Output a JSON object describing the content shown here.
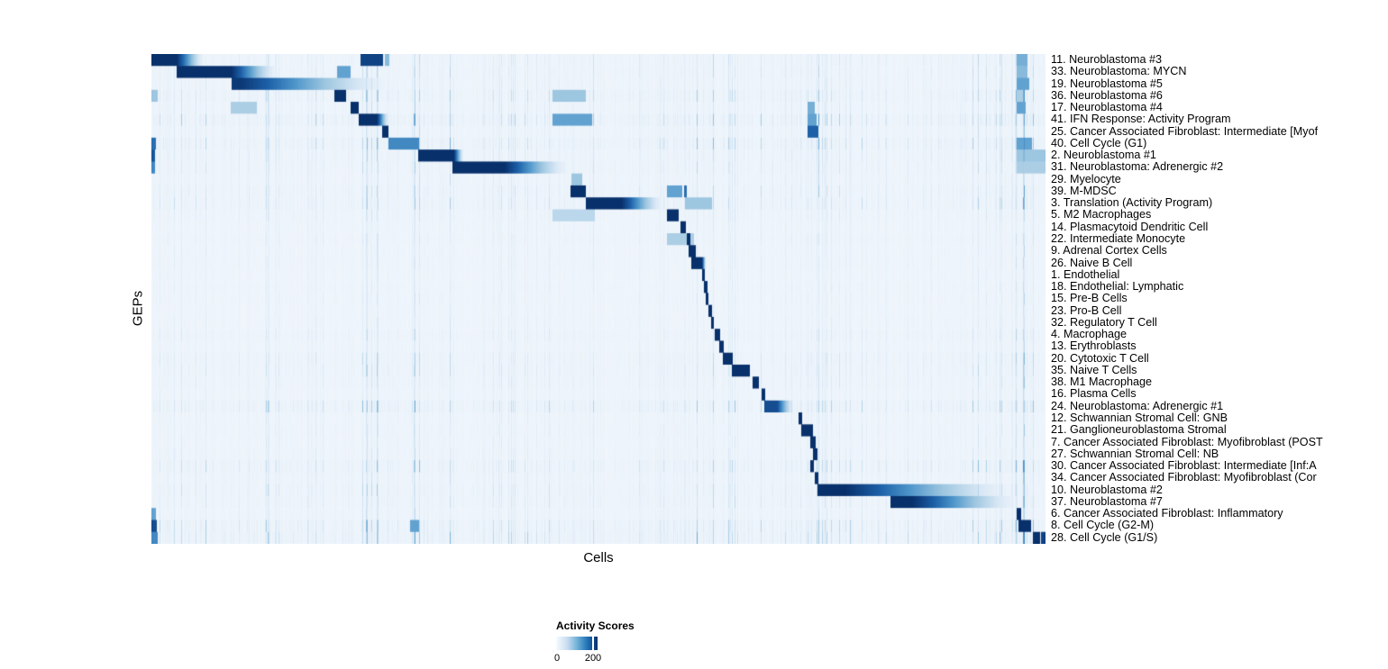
{
  "figure": {
    "xlabel": "Cells",
    "ylabel": "GEPs",
    "legend": {
      "title": "Activity Scores",
      "tick_labels": [
        "0",
        "200"
      ]
    }
  },
  "chart_data": {
    "type": "heatmap",
    "title": "",
    "xlabel": "Cells",
    "ylabel": "GEPs",
    "value_label": "Activity Scores",
    "value_range": [
      0,
      200
    ],
    "legend": {
      "title": "Activity Scores",
      "ticks": [
        0,
        200
      ],
      "position": "bottom-left"
    },
    "colormap_stops": [
      [
        0,
        "#F2F7FC"
      ],
      [
        0.15,
        "#D8E7F5"
      ],
      [
        0.35,
        "#9DC6E0"
      ],
      [
        0.55,
        "#4E96CA"
      ],
      [
        0.75,
        "#1D60A8"
      ],
      [
        1,
        "#08306B"
      ]
    ],
    "background_value": 0.018,
    "noise_bands": [
      [
        0,
        0.229,
        0.9
      ],
      [
        0.229,
        0.264,
        1.3
      ],
      [
        0.264,
        0.335,
        1.5
      ],
      [
        0.335,
        0.446,
        0.7
      ],
      [
        0.446,
        0.496,
        1.5
      ],
      [
        0.496,
        0.566,
        0.9
      ],
      [
        0.566,
        0.632,
        1.5
      ],
      [
        0.632,
        0.718,
        0.9
      ],
      [
        0.718,
        0.748,
        1.4
      ],
      [
        0.748,
        0.839,
        0.8
      ],
      [
        0.839,
        0.899,
        0.7
      ],
      [
        0.899,
        0.965,
        1.1
      ],
      [
        0.965,
        1,
        2.0
      ]
    ],
    "rows": [
      {
        "label": "11. Neuroblastoma #3",
        "seg": [
          0.0,
          0.028
        ],
        "fade": 0.06,
        "amp": 0.5,
        "extras": [
          [
            0.234,
            0.259,
            0.9
          ],
          [
            0.261,
            0.266,
            0.4
          ],
          [
            0.968,
            0.98,
            0.45
          ]
        ]
      },
      {
        "label": "33. Neuroblastoma: MYCN",
        "seg": [
          0.028,
          0.089
        ],
        "fade": 0.143,
        "amp": 0.5,
        "extras": [
          [
            0.207,
            0.222,
            0.5
          ],
          [
            0.968,
            0.98,
            0.4
          ]
        ]
      },
      {
        "label": "19. Neuroblastoma #5",
        "seg": [
          0.089,
          0.101
        ],
        "v": 0.95,
        "fade": 0.274,
        "amp": 0.45,
        "extras": [
          [
            0.968,
            0.982,
            0.5
          ]
        ]
      },
      {
        "label": "36. Neuroblastoma #6",
        "seg": [
          0.204,
          0.217
        ],
        "amp": 0.75,
        "extras": [
          [
            0.0,
            0.007,
            0.35
          ],
          [
            0.449,
            0.486,
            0.35
          ],
          [
            0.968,
            0.976,
            0.3
          ]
        ]
      },
      {
        "label": "17. Neuroblastoma #4",
        "seg": [
          0.222,
          0.232
        ],
        "amp": 0.5,
        "extras": [
          [
            0.088,
            0.118,
            0.3
          ],
          [
            0.734,
            0.742,
            0.45
          ],
          [
            0.968,
            0.978,
            0.5
          ]
        ]
      },
      {
        "label": "41. IFN Response: Activity Program",
        "seg": [
          0.232,
          0.252
        ],
        "fade": 0.266,
        "amp": 1.0,
        "extras": [
          [
            0.449,
            0.493,
            0.5
          ],
          [
            0.734,
            0.744,
            0.5
          ]
        ]
      },
      {
        "label": "25. Cancer Associated Fibroblast: Intermediate [Myof",
        "seg": [
          0.258,
          0.265
        ],
        "amp": 0.45,
        "extras": [
          [
            0.734,
            0.746,
            0.75
          ]
        ]
      },
      {
        "label": "40. Cell Cycle (G1)",
        "seg": [
          0.265,
          0.299
        ],
        "v": 0.6,
        "amp": 0.9,
        "extras": [
          [
            0.0,
            0.005,
            0.7
          ],
          [
            0.968,
            0.985,
            0.5
          ]
        ]
      },
      {
        "label": "2. Neuroblastoma #1",
        "seg": [
          0.298,
          0.338
        ],
        "fade": 0.35,
        "amp": 0.55,
        "extras": [
          [
            0.0,
            0.004,
            0.8
          ],
          [
            0.968,
            1.0,
            0.35
          ]
        ]
      },
      {
        "label": "31. Neuroblastoma: Adrenergic #2",
        "seg": [
          0.337,
          0.395
        ],
        "fade": 0.47,
        "amp": 0.55,
        "extras": [
          [
            0.0,
            0.004,
            0.6
          ],
          [
            0.968,
            1.0,
            0.3
          ]
        ]
      },
      {
        "label": "29. Myelocyte",
        "seg": [
          0.47,
          0.482
        ],
        "v": 0.35,
        "amp": 0.4,
        "extras": []
      },
      {
        "label": "39. M-MDSC",
        "seg": [
          0.469,
          0.486
        ],
        "amp": 0.6,
        "extras": [
          [
            0.577,
            0.594,
            0.5
          ],
          [
            0.596,
            0.599,
            0.7
          ]
        ]
      },
      {
        "label": "3. Translation (Activity Program)",
        "seg": [
          0.486,
          0.526
        ],
        "fade": 0.575,
        "amp": 0.65,
        "extras": [
          [
            0.597,
            0.627,
            0.35
          ]
        ]
      },
      {
        "label": "5. M2 Macrophages",
        "seg": [
          0.577,
          0.59
        ],
        "amp": 0.4,
        "extras": [
          [
            0.449,
            0.496,
            0.25
          ]
        ]
      },
      {
        "label": "14. Plasmacytoid Dendritic Cell",
        "seg": [
          0.592,
          0.598
        ],
        "amp": 0.3,
        "extras": []
      },
      {
        "label": "22. Intermediate Monocyte",
        "seg": [
          0.599,
          0.603
        ],
        "amp": 0.35,
        "extras": [
          [
            0.577,
            0.607,
            0.3
          ]
        ]
      },
      {
        "label": "9. Adrenal Cortex Cells",
        "seg": [
          0.601,
          0.609
        ],
        "amp": 0.3,
        "extras": []
      },
      {
        "label": "26. Naive B Cell",
        "seg": [
          0.604,
          0.616
        ],
        "fade": 0.621,
        "amp": 0.3,
        "extras": []
      },
      {
        "label": "1. Endothelial",
        "seg": [
          0.616,
          0.619
        ],
        "amp": 0.25,
        "extras": []
      },
      {
        "label": "18. Endothelial: Lymphatic",
        "seg": [
          0.618,
          0.622
        ],
        "amp": 0.3,
        "extras": []
      },
      {
        "label": "15. Pre-B Cells",
        "seg": [
          0.62,
          0.623
        ],
        "amp": 0.3,
        "extras": []
      },
      {
        "label": "23. Pro-B Cell",
        "seg": [
          0.623,
          0.627
        ],
        "amp": 0.25,
        "extras": []
      },
      {
        "label": "32. Regulatory T Cell",
        "seg": [
          0.626,
          0.629
        ],
        "amp": 0.3,
        "extras": []
      },
      {
        "label": "4. Macrophage",
        "seg": [
          0.63,
          0.636
        ],
        "amp": 0.45,
        "extras": []
      },
      {
        "label": "13. Erythroblasts",
        "seg": [
          0.635,
          0.64
        ],
        "amp": 0.3,
        "extras": []
      },
      {
        "label": "20. Cytotoxic T Cell",
        "seg": [
          0.639,
          0.65
        ],
        "amp": 0.55,
        "extras": []
      },
      {
        "label": "35. Naive T Cells",
        "seg": [
          0.649,
          0.67
        ],
        "amp": 0.55,
        "extras": []
      },
      {
        "label": "38. M1 Macrophage",
        "seg": [
          0.673,
          0.68
        ],
        "amp": 0.45,
        "extras": []
      },
      {
        "label": "16. Plasma Cells",
        "seg": [
          0.683,
          0.687
        ],
        "amp": 0.3,
        "extras": []
      },
      {
        "label": "24. Neuroblastoma: Adrenergic #1",
        "seg": [
          0.686,
          0.7
        ],
        "v": 0.85,
        "fade": 0.72,
        "amp": 0.9,
        "extras": []
      },
      {
        "label": "12. Schwannian Stromal Cell: GNB",
        "seg": [
          0.724,
          0.728
        ],
        "amp": 0.35,
        "extras": []
      },
      {
        "label": "21. Ganglioneuroblastoma Stromal",
        "seg": [
          0.727,
          0.74
        ],
        "amp": 0.4,
        "extras": []
      },
      {
        "label": "7. Cancer Associated Fibroblast: Myofibroblast (POST",
        "seg": [
          0.737,
          0.743
        ],
        "amp": 0.35,
        "extras": []
      },
      {
        "label": "27. Schwannian Stromal Cell: NB",
        "seg": [
          0.74,
          0.745
        ],
        "amp": 0.4,
        "extras": []
      },
      {
        "label": "30. Cancer Associated Fibroblast: Intermediate [Inf:A",
        "seg": [
          0.737,
          0.741
        ],
        "amp": 0.8,
        "extras": []
      },
      {
        "label": "34. Cancer Associated Fibroblast: Myofibroblast (Cor",
        "seg": [
          0.742,
          0.746
        ],
        "amp": 0.45,
        "extras": []
      },
      {
        "label": "10. Neuroblastoma #2",
        "seg": [
          0.745,
          0.776
        ],
        "fade": 0.973,
        "amp": 0.6,
        "extras": []
      },
      {
        "label": "37. Neuroblastoma #7",
        "seg": [
          0.827,
          0.851
        ],
        "fade": 0.977,
        "amp": 0.55,
        "extras": []
      },
      {
        "label": "6. Cancer Associated Fibroblast: Inflammatory",
        "seg": [
          0.968,
          0.973
        ],
        "amp": 0.4,
        "extras": [
          [
            0.0,
            0.005,
            0.5
          ]
        ]
      },
      {
        "label": "8. Cell Cycle (G2-M)",
        "seg": [
          0.97,
          0.984
        ],
        "amp": 0.95,
        "extras": [
          [
            0.0,
            0.006,
            0.85
          ],
          [
            0.289,
            0.299,
            0.5
          ]
        ]
      },
      {
        "label": "28. Cell Cycle (G1/S)",
        "seg": [
          0.986,
          0.994
        ],
        "amp": 1.0,
        "extras": [
          [
            0.0,
            0.007,
            0.6
          ],
          [
            0.995,
            1.0,
            0.9
          ]
        ]
      }
    ]
  }
}
